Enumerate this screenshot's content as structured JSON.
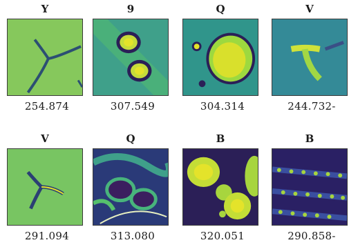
{
  "panels": [
    {
      "label": "Y",
      "value": "254.874",
      "icon": "branching-crack-image"
    },
    {
      "label": "9",
      "value": "307.549",
      "icon": "twin-nuclei-image"
    },
    {
      "label": "Q",
      "value": "304.314",
      "icon": "large-cell-image"
    },
    {
      "label": "V",
      "value": "244.732-",
      "icon": "t-shaped-fiber-image"
    },
    {
      "label": "V",
      "value": "291.094",
      "icon": "tri-branch-fiber-image"
    },
    {
      "label": "Q",
      "value": "313.080",
      "icon": "tissue-swirl-image"
    },
    {
      "label": "B",
      "value": "320.051",
      "icon": "bright-cells-image"
    },
    {
      "label": "B",
      "value": "290.858-",
      "icon": "dotted-streaks-image"
    }
  ],
  "colors": {
    "viridis_dark": "#2b1f57",
    "viridis_mid": "#2a8a8c",
    "viridis_green": "#55b86a",
    "viridis_yellow": "#e4e32a"
  }
}
